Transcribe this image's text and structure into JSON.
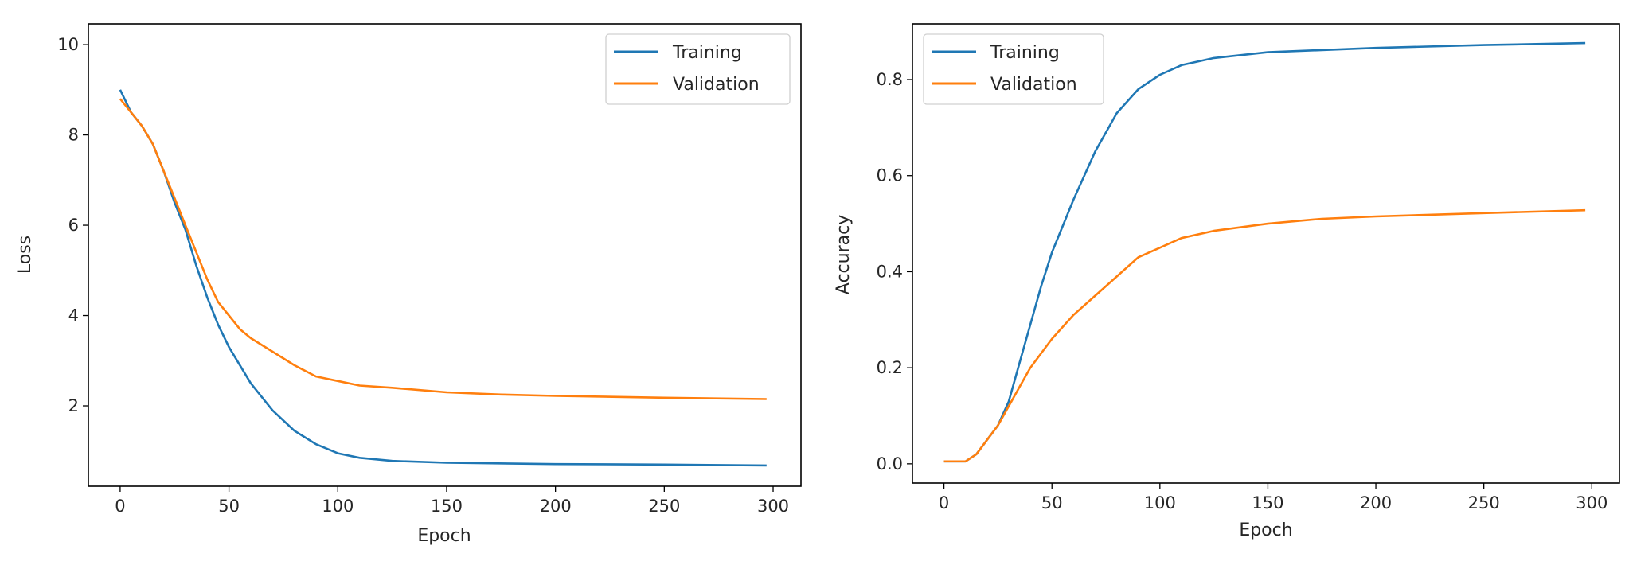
{
  "chart_data": [
    {
      "type": "line",
      "title": "",
      "xlabel": "Epoch",
      "ylabel": "Loss",
      "xlim": [
        -14.6,
        312.8
      ],
      "ylim": [
        0.22,
        10.46
      ],
      "xticks": [
        0,
        50,
        100,
        150,
        200,
        250,
        300
      ],
      "yticks": [
        2,
        4,
        6,
        8,
        10
      ],
      "grid": false,
      "legend": "top-right",
      "series": [
        {
          "name": "Training",
          "color": "#1f77b4",
          "x": [
            0,
            5,
            10,
            15,
            20,
            25,
            30,
            35,
            40,
            45,
            50,
            60,
            70,
            80,
            90,
            100,
            110,
            125,
            150,
            200,
            250,
            297
          ],
          "y": [
            9.0,
            8.5,
            8.2,
            7.8,
            7.2,
            6.5,
            5.9,
            5.1,
            4.4,
            3.8,
            3.3,
            2.5,
            1.9,
            1.45,
            1.15,
            0.95,
            0.85,
            0.78,
            0.74,
            0.71,
            0.7,
            0.68
          ]
        },
        {
          "name": "Validation",
          "color": "#ff7f0e",
          "x": [
            0,
            5,
            10,
            15,
            20,
            25,
            30,
            35,
            40,
            45,
            50,
            55,
            60,
            70,
            80,
            90,
            100,
            110,
            125,
            150,
            175,
            200,
            250,
            297
          ],
          "y": [
            8.8,
            8.5,
            8.2,
            7.8,
            7.2,
            6.6,
            6.0,
            5.4,
            4.8,
            4.3,
            4.0,
            3.7,
            3.5,
            3.2,
            2.9,
            2.65,
            2.55,
            2.45,
            2.4,
            2.3,
            2.25,
            2.22,
            2.18,
            2.15
          ]
        }
      ]
    },
    {
      "type": "line",
      "title": "",
      "xlabel": "Epoch",
      "ylabel": "Accuracy",
      "xlim": [
        -14.6,
        312.8
      ],
      "ylim": [
        -0.04,
        0.916
      ],
      "xticks": [
        0,
        50,
        100,
        150,
        200,
        250,
        300
      ],
      "yticks": [
        0.0,
        0.2,
        0.4,
        0.6,
        0.8
      ],
      "grid": false,
      "legend": "top-left",
      "series": [
        {
          "name": "Training",
          "color": "#1f77b4",
          "x": [
            0,
            5,
            10,
            15,
            20,
            25,
            30,
            35,
            40,
            45,
            50,
            60,
            70,
            80,
            90,
            100,
            110,
            125,
            150,
            200,
            250,
            297
          ],
          "y": [
            0.005,
            0.005,
            0.005,
            0.02,
            0.05,
            0.08,
            0.13,
            0.21,
            0.29,
            0.37,
            0.44,
            0.55,
            0.65,
            0.73,
            0.78,
            0.81,
            0.83,
            0.845,
            0.857,
            0.866,
            0.872,
            0.876
          ]
        },
        {
          "name": "Validation",
          "color": "#ff7f0e",
          "x": [
            0,
            5,
            10,
            15,
            20,
            25,
            30,
            35,
            40,
            50,
            60,
            70,
            80,
            90,
            100,
            110,
            125,
            150,
            175,
            200,
            250,
            297
          ],
          "y": [
            0.005,
            0.005,
            0.005,
            0.02,
            0.05,
            0.08,
            0.12,
            0.16,
            0.2,
            0.26,
            0.31,
            0.35,
            0.39,
            0.43,
            0.45,
            0.47,
            0.485,
            0.5,
            0.51,
            0.515,
            0.522,
            0.528
          ]
        }
      ]
    }
  ]
}
